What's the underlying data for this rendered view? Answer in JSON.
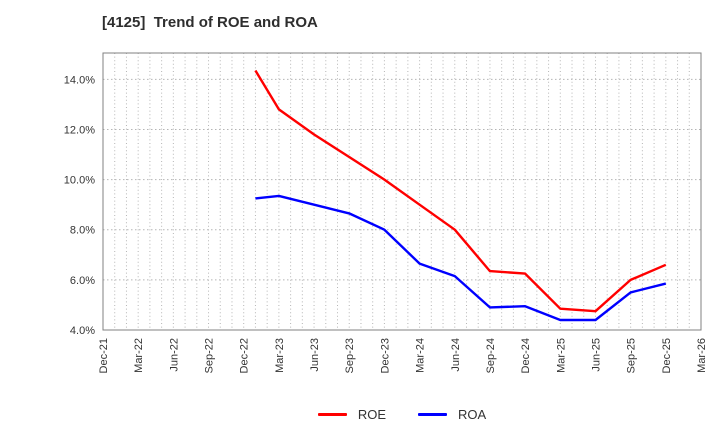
{
  "page": {
    "title": "[4125]  Trend of ROE and ROA"
  },
  "chart_data": {
    "type": "line",
    "title": "[4125]  Trend of ROE and ROA",
    "x_axis": {
      "tick_labels": [
        "Dec-21",
        "Mar-22",
        "Jun-22",
        "Sep-22",
        "Dec-22",
        "Mar-23",
        "Jun-23",
        "Sep-23",
        "Dec-23",
        "Mar-24",
        "Jun-24",
        "Sep-24",
        "Dec-24",
        "Mar-25",
        "Jun-25",
        "Sep-25",
        "Dec-25",
        "Mar-26"
      ],
      "months_between_ticks": 3,
      "tick_label_rotation_deg": 90
    },
    "y_axis": {
      "unit": "%",
      "tick_values": [
        4,
        6,
        8,
        10,
        12,
        14
      ],
      "tick_labels": [
        "4.0%",
        "6.0%",
        "8.0%",
        "10.0%",
        "12.0%",
        "14.0%"
      ],
      "ylim": [
        4,
        15.05
      ]
    },
    "series": [
      {
        "name": "ROE",
        "color": "#ff0000",
        "x_month_offsets": [
          13,
          15,
          18,
          21,
          24,
          27,
          30,
          33,
          36,
          39,
          42,
          45,
          48
        ],
        "values": [
          14.35,
          12.8,
          11.8,
          10.9,
          10.0,
          9.0,
          8.0,
          6.35,
          6.25,
          4.85,
          4.75,
          6.0,
          6.6
        ]
      },
      {
        "name": "ROA",
        "color": "#0000ff",
        "x_month_offsets": [
          13,
          15,
          18,
          21,
          24,
          27,
          30,
          33,
          36,
          39,
          42,
          45,
          48
        ],
        "values": [
          9.25,
          9.35,
          9.0,
          8.65,
          8.0,
          6.65,
          6.15,
          4.9,
          4.95,
          4.4,
          4.4,
          5.5,
          5.85
        ]
      }
    ],
    "grid": {
      "vertical": "monthly, dotted",
      "horizontal": "every 2%, dotted",
      "color": "#b5b5b5"
    },
    "frame_color": "#808080",
    "text_color": "#333333",
    "legend": {
      "position": "bottom-center",
      "entries": [
        "ROE",
        "ROA"
      ]
    }
  }
}
